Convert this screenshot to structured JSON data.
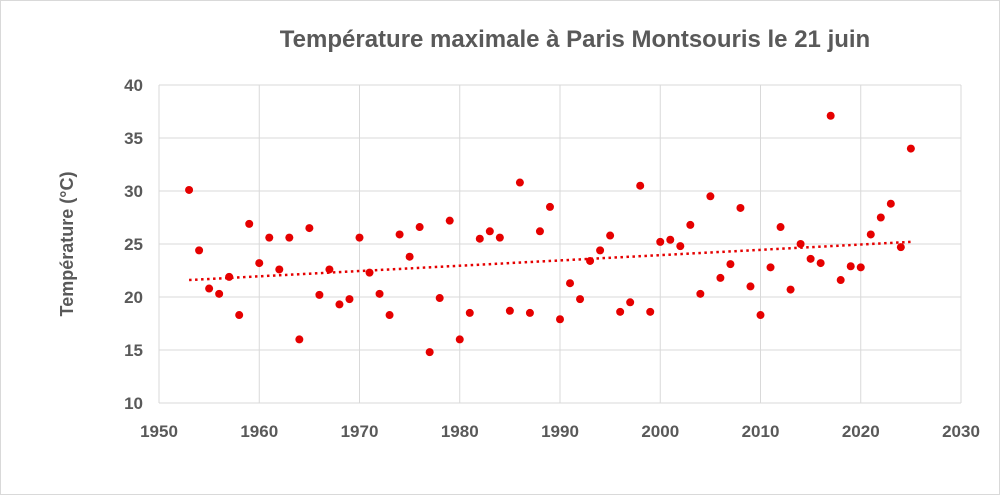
{
  "chart_data": {
    "type": "scatter",
    "title": "Température maximale à Paris Montsouris le 21 juin",
    "xlabel": "",
    "ylabel": "Température (°C)",
    "xlim": [
      1950,
      2030
    ],
    "ylim": [
      10,
      40
    ],
    "x_ticks": [
      1950,
      1960,
      1970,
      1980,
      1990,
      2000,
      2010,
      2020,
      2030
    ],
    "y_ticks": [
      10,
      15,
      20,
      25,
      30,
      35,
      40
    ],
    "grid": true,
    "legend": "none",
    "colors": {
      "points": "#e50000",
      "trend": "#e50000",
      "grid": "#d9d9d9",
      "text": "#595959"
    },
    "series": [
      {
        "x": [
          1953,
          1954,
          1955,
          1956,
          1957,
          1958,
          1959,
          1960,
          1961,
          1962,
          1963,
          1964,
          1965,
          1966,
          1967,
          1968,
          1969,
          1970,
          1971,
          1972,
          1973,
          1974,
          1975,
          1976,
          1977,
          1978,
          1979,
          1980,
          1981,
          1982,
          1983,
          1984,
          1985,
          1986,
          1987,
          1988,
          1989,
          1990,
          1991,
          1992,
          1993,
          1994,
          1995,
          1996,
          1997,
          1998,
          1999,
          2000,
          2001,
          2002,
          2003,
          2004,
          2005,
          2006,
          2007,
          2008,
          2009,
          2010,
          2011,
          2012,
          2013,
          2014,
          2015,
          2016,
          2017,
          2018,
          2019,
          2020,
          2021,
          2022,
          2023,
          2024,
          2025
        ],
        "y": [
          30.1,
          24.4,
          20.8,
          20.3,
          21.9,
          18.3,
          26.9,
          23.2,
          25.6,
          22.6,
          25.6,
          16.0,
          26.5,
          20.2,
          22.6,
          19.3,
          19.8,
          25.6,
          22.3,
          20.3,
          18.3,
          25.9,
          23.8,
          26.6,
          14.8,
          19.9,
          27.2,
          16.0,
          18.5,
          25.5,
          26.2,
          25.6,
          18.7,
          30.8,
          18.5,
          26.2,
          28.5,
          17.9,
          21.3,
          19.8,
          23.4,
          24.4,
          25.8,
          18.6,
          19.5,
          30.5,
          18.6,
          25.2,
          25.4,
          24.8,
          26.8,
          20.3,
          29.5,
          21.8,
          23.1,
          28.4,
          21.0,
          18.3,
          22.8,
          26.6,
          20.7,
          25.0,
          23.6,
          23.2,
          37.1,
          21.6,
          22.9,
          22.8,
          25.9,
          27.5,
          28.8,
          24.7,
          34.0
        ]
      }
    ],
    "trendline": {
      "type": "linear",
      "style": "dotted",
      "x": [
        1953,
        2025
      ],
      "y": [
        21.6,
        25.2
      ]
    }
  }
}
